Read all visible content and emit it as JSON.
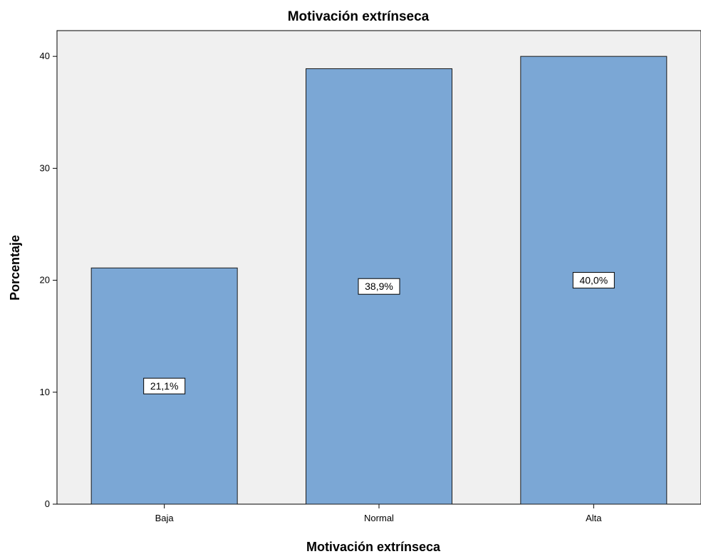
{
  "chart_data": {
    "type": "bar",
    "title": "Motivación extrínseca",
    "xlabel": "Motivación extrínseca",
    "ylabel": "Porcentaje",
    "categories": [
      "Baja",
      "Normal",
      "Alta"
    ],
    "values": [
      21.1,
      38.9,
      40.0
    ],
    "data_labels": [
      "21,1%",
      "38,9%",
      "40,0%"
    ],
    "ylim": [
      0,
      42.3
    ],
    "yticks": [
      0,
      10,
      20,
      30,
      40
    ],
    "ytick_labels": [
      "0",
      "10",
      "20",
      "30",
      "40"
    ],
    "grid": false,
    "legend": "none",
    "colors": {
      "bar_fill": "#7BA7D5",
      "bar_stroke": "#1A1A1A",
      "plot_background": "#F0F0F0",
      "label_background": "#FFFFFF"
    }
  }
}
